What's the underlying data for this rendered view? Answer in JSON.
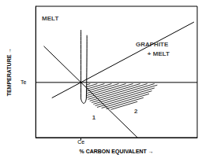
{
  "chart_data": {
    "type": "line",
    "x_label": "% CARBON EQUIVALENT →",
    "y_label": "TEMPERATURE →",
    "xlim": [
      0,
      100
    ],
    "ylim": [
      0,
      100
    ],
    "xticks": [
      {
        "value": 28,
        "label": "Ce"
      }
    ],
    "yticks": [
      {
        "value": 42,
        "label": "Te"
      }
    ],
    "grid": false,
    "color": "#000000",
    "series": [
      {
        "values": [
          [
            5,
            69.6
          ],
          [
            63,
            0
          ]
        ]
      },
      {
        "values": [
          [
            10,
            30.2
          ],
          [
            98,
            88
          ]
        ]
      },
      {
        "values": [
          [
            0,
            42
          ],
          [
            100,
            42
          ]
        ]
      },
      {
        "values": [
          [
            28,
            82
          ],
          [
            28,
            30
          ],
          [
            29.8,
            26
          ],
          [
            31.3,
            30
          ],
          [
            31.7,
            78
          ]
        ]
      }
    ],
    "hatched_region": [
      [
        31.5,
        41
      ],
      [
        76,
        41
      ],
      [
        70,
        33
      ],
      [
        60,
        25
      ],
      [
        48,
        21
      ],
      [
        38,
        23
      ],
      [
        31.5,
        30
      ]
    ],
    "annotations": [
      {
        "text": "MELT",
        "x": 9,
        "y": 91
      },
      {
        "text": "GRAPHITE",
        "x": 72,
        "y": 71
      },
      {
        "text": "+ MELT",
        "x": 76,
        "y": 64
      },
      {
        "text": "1",
        "x": 36,
        "y": 15
      },
      {
        "text": "2",
        "x": 62,
        "y": 20
      }
    ]
  }
}
